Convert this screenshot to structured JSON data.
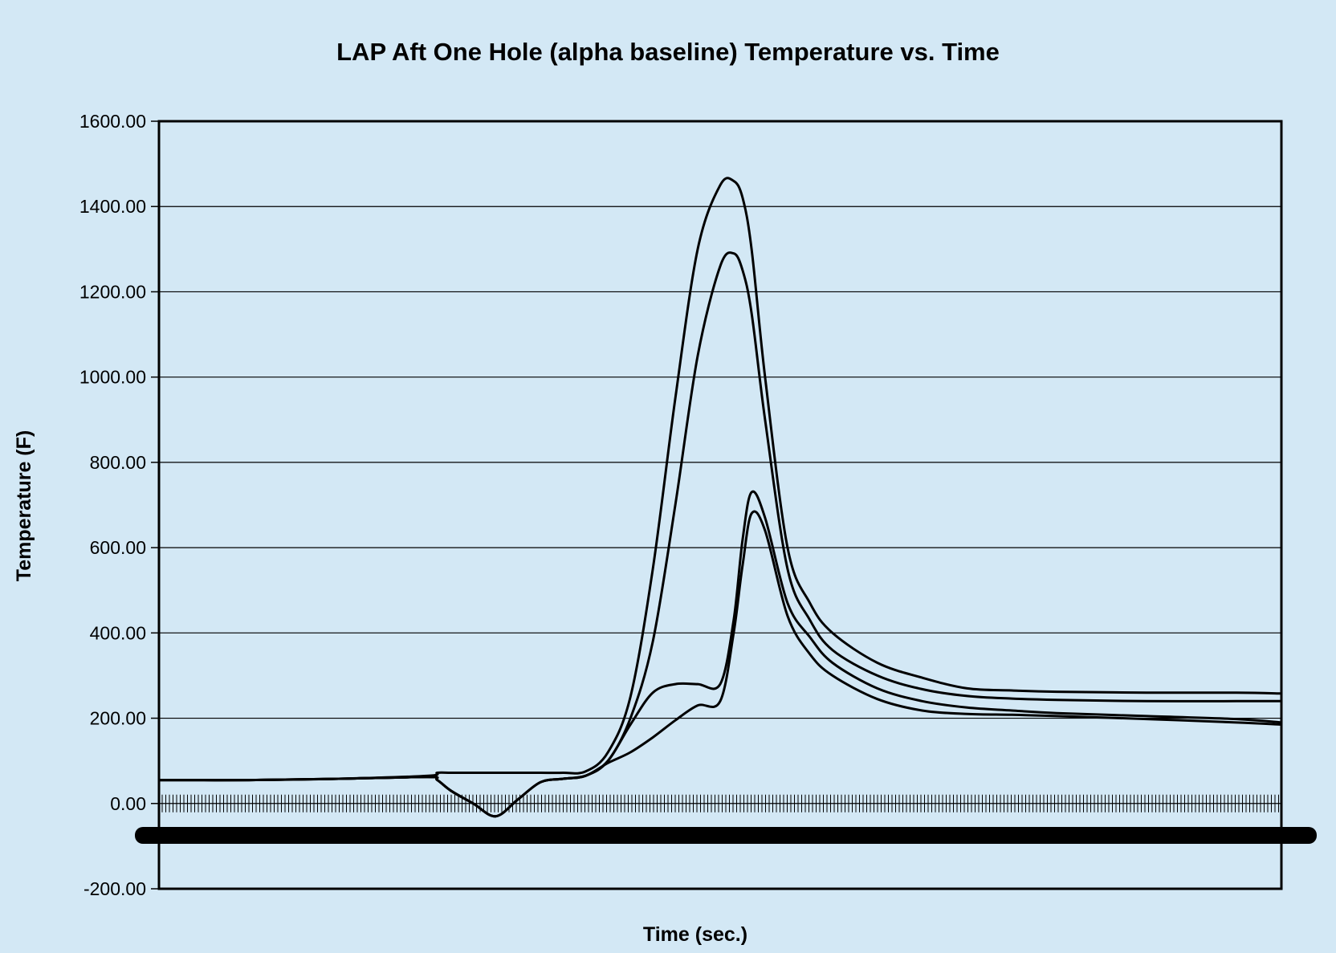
{
  "chart_data": {
    "type": "line",
    "title": "LAP Aft One Hole (alpha baseline) Temperature vs. Time",
    "xlabel": "Time (sec.)",
    "ylabel": "Temperature (F)",
    "ylim": [
      -200,
      1600
    ],
    "yticks": [
      "-200.00",
      "0.00",
      "200.00",
      "400.00",
      "600.00",
      "800.00",
      "1000.00",
      "1200.00",
      "1400.00",
      "1600.00"
    ],
    "grid": "horizontal",
    "legend": "none",
    "x_tick_labels_illegible": true,
    "x": [
      0,
      20,
      40,
      60,
      62,
      65,
      70,
      75,
      80,
      85,
      90,
      95,
      100,
      105,
      110,
      115,
      120,
      125,
      128,
      130,
      132,
      135,
      140,
      145,
      150,
      160,
      170,
      180,
      190,
      200,
      220,
      240,
      250
    ],
    "series": [
      {
        "values": [
          55,
          55,
          58,
          65,
          72,
          72,
          72,
          72,
          72,
          72,
          72,
          75,
          120,
          250,
          550,
          950,
          1300,
          1450,
          1460,
          1420,
          1300,
          1000,
          600,
          470,
          400,
          330,
          295,
          270,
          265,
          262,
          260,
          260,
          258
        ]
      },
      {
        "values": [
          55,
          55,
          58,
          62,
          55,
          30,
          0,
          -30,
          10,
          50,
          58,
          65,
          100,
          200,
          380,
          700,
          1050,
          1260,
          1290,
          1250,
          1150,
          900,
          550,
          430,
          360,
          300,
          268,
          252,
          246,
          243,
          240,
          240,
          240
        ]
      },
      {
        "values": [
          55,
          55,
          58,
          62,
          55,
          30,
          0,
          -30,
          10,
          50,
          58,
          65,
          100,
          185,
          260,
          280,
          280,
          280,
          430,
          620,
          730,
          670,
          470,
          390,
          330,
          270,
          240,
          225,
          218,
          212,
          205,
          198,
          190
        ]
      },
      {
        "values": [
          55,
          55,
          58,
          62,
          55,
          30,
          0,
          -30,
          10,
          50,
          58,
          65,
          95,
          120,
          155,
          195,
          230,
          240,
          400,
          560,
          680,
          640,
          440,
          350,
          300,
          245,
          218,
          210,
          208,
          205,
          198,
          190,
          185
        ]
      }
    ]
  }
}
